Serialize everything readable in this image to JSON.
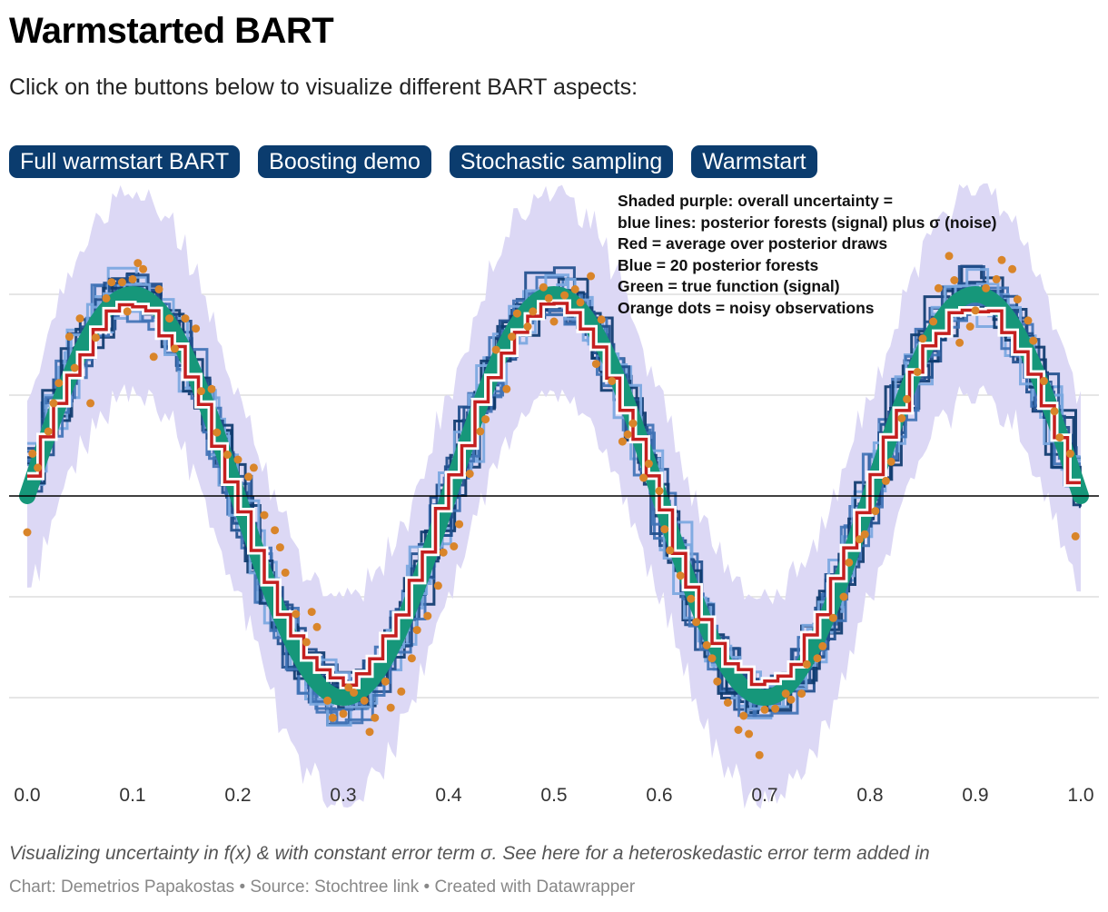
{
  "header": {
    "title": "Warmstarted BART",
    "subtitle": "Click on the buttons below to visualize different BART aspects:"
  },
  "buttons": [
    {
      "label": "Full warmstart BART"
    },
    {
      "label": "Boosting demo"
    },
    {
      "label": "Stochastic sampling"
    },
    {
      "label": "Warmstart"
    }
  ],
  "legend": {
    "line1": "Shaded purple: overall uncertainty =",
    "line2": "blue lines: posterior forests (signal) plus σ (noise)",
    "line3": "Red = average over posterior draws",
    "line4": "Blue = 20 posterior forests",
    "line5": "Green = true function (signal)",
    "line6": "Orange dots = noisy observations"
  },
  "footer": {
    "note": "Visualizing uncertainty in f(x) & with constant error term σ. See here for a heteroskedastic error term added in",
    "credits": "Chart: Demetrios Papakostas • Source: Stochtree link • Created with Datawrapper"
  },
  "colors": {
    "uncertainty_band": "#dcd8f5",
    "posterior_forests": [
      "#0d3a6e",
      "#1f4e8c",
      "#3f72b5",
      "#7aa7e0"
    ],
    "average_line": "#c41f1f",
    "true_function": "#16977a",
    "observations": "#d9852a",
    "gridline": "#d6d6d6",
    "zero_line": "#000000",
    "button_bg": "#0b3c6e"
  },
  "chart_data": {
    "type": "line",
    "title": "Warmstarted BART",
    "xlabel": "",
    "ylabel": "",
    "xlim": [
      0,
      1
    ],
    "ylim": [
      -2.75,
      2.2
    ],
    "x_ticks": [
      0.0,
      0.1,
      0.2,
      0.3,
      0.4,
      0.5,
      0.6,
      0.7,
      0.8,
      0.9,
      1.0
    ],
    "x_tick_labels": [
      "0.0",
      "0.1",
      "0.2",
      "0.3",
      "0.4",
      "0.5",
      "0.6",
      "0.7",
      "0.8",
      "0.9",
      "1.0"
    ],
    "y_gridlines": [
      -2,
      -1,
      0,
      1,
      2
    ],
    "zero_line": 0,
    "true_function": "f(x) = 2·sin(5πx)",
    "true_function_x": [
      0.0,
      0.05,
      0.1,
      0.15,
      0.2,
      0.25,
      0.3,
      0.35,
      0.4,
      0.45,
      0.5,
      0.55,
      0.6,
      0.65,
      0.7,
      0.75,
      0.8,
      0.85,
      0.9,
      0.95,
      1.0
    ],
    "true_function_y": [
      0.0,
      1.41,
      2.0,
      1.41,
      0.0,
      -1.41,
      -2.0,
      -1.41,
      0.0,
      1.41,
      2.0,
      1.41,
      0.0,
      -1.41,
      -2.0,
      -1.41,
      0.0,
      1.41,
      2.0,
      1.41,
      0.0
    ],
    "sigma": 0.5,
    "posterior_draws": 20,
    "observations": {
      "x": [
        0.0,
        0.005,
        0.01,
        0.02,
        0.025,
        0.03,
        0.04,
        0.045,
        0.05,
        0.06,
        0.065,
        0.075,
        0.08,
        0.09,
        0.095,
        0.1,
        0.105,
        0.11,
        0.12,
        0.125,
        0.135,
        0.14,
        0.15,
        0.16,
        0.165,
        0.175,
        0.18,
        0.19,
        0.2,
        0.21,
        0.215,
        0.225,
        0.235,
        0.24,
        0.245,
        0.255,
        0.265,
        0.27,
        0.275,
        0.285,
        0.29,
        0.3,
        0.305,
        0.31,
        0.32,
        0.325,
        0.33,
        0.34,
        0.345,
        0.355,
        0.365,
        0.37,
        0.38,
        0.39,
        0.395,
        0.405,
        0.41,
        0.42,
        0.43,
        0.435,
        0.445,
        0.455,
        0.46,
        0.465,
        0.475,
        0.48,
        0.49,
        0.495,
        0.5,
        0.51,
        0.52,
        0.525,
        0.535,
        0.54,
        0.545,
        0.555,
        0.565,
        0.57,
        0.575,
        0.585,
        0.59,
        0.6,
        0.605,
        0.61,
        0.62,
        0.63,
        0.635,
        0.645,
        0.65,
        0.655,
        0.665,
        0.675,
        0.68,
        0.685,
        0.695,
        0.7,
        0.71,
        0.72,
        0.725,
        0.735,
        0.74,
        0.75,
        0.755,
        0.765,
        0.775,
        0.78,
        0.79,
        0.795,
        0.805,
        0.815,
        0.82,
        0.83,
        0.835,
        0.845,
        0.85,
        0.86,
        0.865,
        0.875,
        0.88,
        0.885,
        0.895,
        0.9,
        0.91,
        0.92,
        0.925,
        0.935,
        0.94,
        0.95,
        0.955,
        0.965,
        0.975,
        0.98,
        0.99,
        0.995
      ],
      "y": [
        -0.36,
        0.42,
        0.28,
        0.64,
        0.92,
        1.12,
        1.58,
        1.27,
        1.76,
        0.92,
        1.57,
        1.96,
        2.12,
        2.12,
        1.83,
        2.15,
        2.31,
        2.25,
        1.38,
        2.05,
        1.76,
        1.46,
        1.76,
        1.66,
        1.04,
        1.06,
        0.63,
        0.41,
        0.36,
        0.19,
        0.28,
        -0.19,
        -0.34,
        -0.51,
        -0.76,
        -1.17,
        -1.45,
        -1.15,
        -1.3,
        -2.03,
        -2.2,
        -2.16,
        -1.9,
        -1.95,
        -2.03,
        -2.34,
        -2.2,
        -1.84,
        -2.1,
        -1.94,
        -1.61,
        -1.33,
        -1.19,
        -0.89,
        -0.56,
        -0.5,
        -0.28,
        0.22,
        0.64,
        0.76,
        1.45,
        1.06,
        1.58,
        1.81,
        1.68,
        1.83,
        2.07,
        1.96,
        1.73,
        1.99,
        2.05,
        1.92,
        2.18,
        1.31,
        1.75,
        1.14,
        0.54,
        0.61,
        0.72,
        0.18,
        0.32,
        0.05,
        -0.33,
        -0.54,
        -0.79,
        -1.02,
        -1.25,
        -1.48,
        -1.61,
        -1.84,
        -2.05,
        -2.32,
        -2.18,
        -2.36,
        -2.57,
        -2.12,
        -2.11,
        -1.96,
        -2.02,
        -1.96,
        -1.67,
        -1.61,
        -1.49,
        -1.21,
        -1.0,
        -0.66,
        -0.43,
        -0.38,
        -0.15,
        0.15,
        0.34,
        0.77,
        0.96,
        1.23,
        1.56,
        1.73,
        2.06,
        2.38,
        2.14,
        1.52,
        1.68,
        1.84,
        2.06,
        2.15,
        2.34,
        2.25,
        1.95,
        1.74,
        1.54,
        1.14,
        0.84,
        0.58,
        0.42,
        -0.4
      ]
    },
    "band_half_width": 1.0
  }
}
